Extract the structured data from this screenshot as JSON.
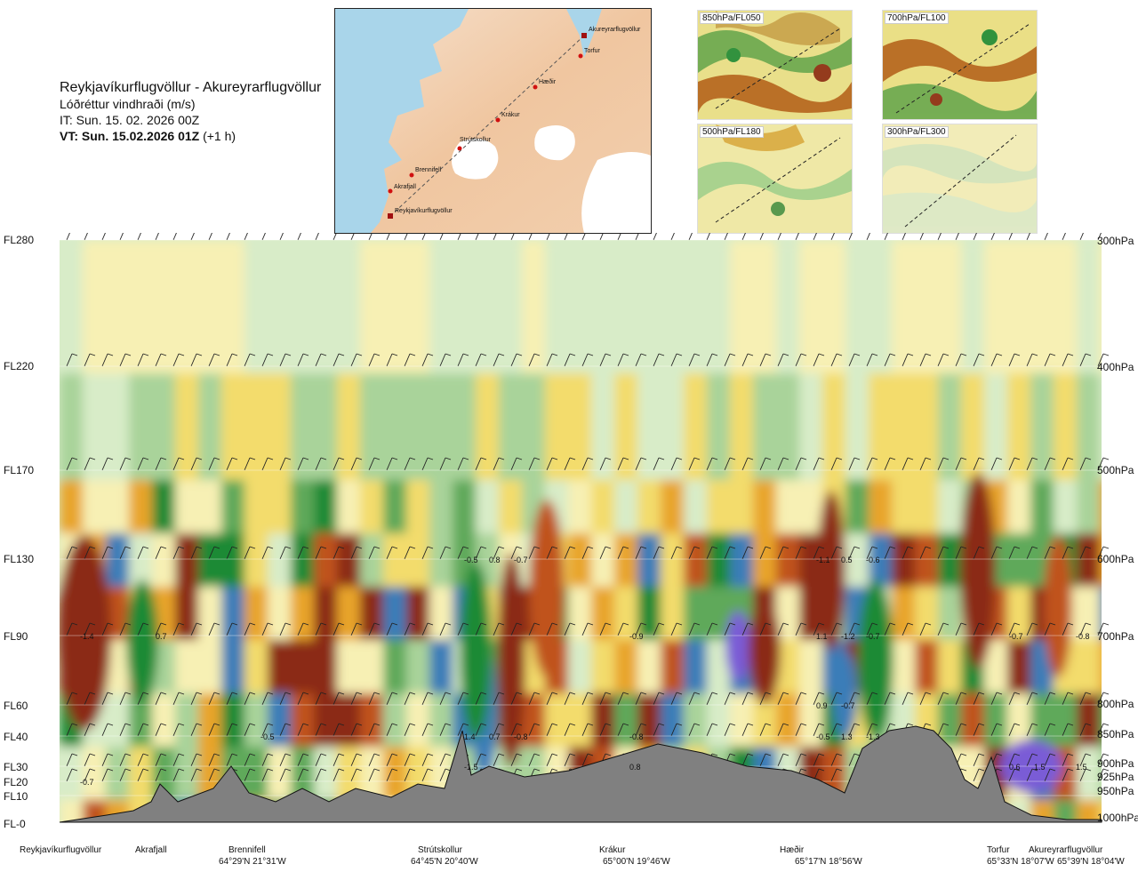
{
  "header": {
    "route": "Reykjavíkurflugvöllur - Akureyrarflugvöllur",
    "variable": "Lóðréttur vindhraði (m/s)",
    "issue_time": "IT: Sun. 15. 02. 2026 00Z",
    "valid_time": "VT: Sun. 15.02.2026 01Z",
    "valid_offset": "(+1 h)"
  },
  "route_map": {
    "points": [
      {
        "name": "Reykjavíkurflugvöllur"
      },
      {
        "name": "Akrafjall"
      },
      {
        "name": "Brennifell"
      },
      {
        "name": "Strútskollur"
      },
      {
        "name": "Krákur"
      },
      {
        "name": "Hæðir"
      },
      {
        "name": "Torfur"
      },
      {
        "name": "Akureyrarflugvöllur"
      }
    ]
  },
  "mini_maps": [
    {
      "label": "850hPa/FL050"
    },
    {
      "label": "700hPa/FL100"
    },
    {
      "label": "500hPa/FL180"
    },
    {
      "label": "300hPa/FL300"
    }
  ],
  "chart_data": {
    "type": "heatmap",
    "title": "Reykjavíkurflugvöllur - Akureyrarflugvöllur",
    "subtitle": "Lóðréttur vindhraði (m/s)",
    "y_left_ticks": [
      "FL280",
      "FL220",
      "FL170",
      "FL130",
      "FL90",
      "FL60",
      "FL40",
      "FL30",
      "FL20",
      "FL10",
      "FL-0"
    ],
    "y_right_ticks": [
      "300hPa",
      "400hPa",
      "500hPa",
      "600hPa",
      "700hPa",
      "800hPa",
      "850hPa",
      "900hPa",
      "925hPa",
      "950hPa",
      "1000hPa"
    ],
    "x_locations": [
      {
        "name": "Reykjavíkurflugvöllur",
        "coord": ""
      },
      {
        "name": "Akrafjall",
        "coord": ""
      },
      {
        "name": "Brennifell",
        "coord": "64°29'N 21°31'W"
      },
      {
        "name": "Strútskollur",
        "coord": "64°45'N 20°40'W"
      },
      {
        "name": "Krákur",
        "coord": "65°00'N 19°46'W"
      },
      {
        "name": "Hæðir",
        "coord": "65°17'N 18°56'W"
      },
      {
        "name": "Torfur",
        "coord": "65°33'N 18°07'W"
      },
      {
        "name": "Akureyrarflugvöllur",
        "coord": "65°39'N 18°04'W"
      }
    ],
    "field_labels": [
      {
        "text": "-1.4",
        "level": "FL90",
        "near": "Reykjavíkurflugvöllur"
      },
      {
        "text": "0.7",
        "level": "FL90",
        "near": "Akrafjall"
      },
      {
        "text": "-0.7",
        "level": "FL20",
        "near": "Reykjavíkurflugvöllur"
      },
      {
        "text": "-0.5",
        "level": "FL40",
        "near": "Brennifell"
      },
      {
        "text": "-0.5",
        "level": "FL130",
        "near": "Strútskollur"
      },
      {
        "text": "0.8",
        "level": "FL130",
        "near": "Strútskollur"
      },
      {
        "text": "-0.7",
        "level": "FL130",
        "near": "Strútskollur"
      },
      {
        "text": "1.4",
        "level": "FL40",
        "near": "Strútskollur"
      },
      {
        "text": "-1.5",
        "level": "FL30",
        "near": "Strútskollur"
      },
      {
        "text": "0.7",
        "level": "FL40",
        "near": "Strútskollur"
      },
      {
        "text": "-0.8",
        "level": "FL40",
        "near": "Strútskollur"
      },
      {
        "text": "-0.9",
        "level": "FL90",
        "near": "Krákur"
      },
      {
        "text": "-0.8",
        "level": "FL40",
        "near": "Krákur"
      },
      {
        "text": "0.8",
        "level": "FL30",
        "near": "Krákur"
      },
      {
        "text": "1.1",
        "level": "FL90",
        "near": "Hæðir"
      },
      {
        "text": "-1.2",
        "level": "FL90",
        "near": "Hæðir"
      },
      {
        "text": "-0.7",
        "level": "FL90",
        "near": "Hæðir"
      },
      {
        "text": "-0.5",
        "level": "FL40",
        "near": "Hæðir"
      },
      {
        "text": "0.9",
        "level": "FL60",
        "near": "Hæðir"
      },
      {
        "text": "-1.1",
        "level": "FL130",
        "near": "Hæðir"
      },
      {
        "text": "0.5",
        "level": "FL130",
        "near": "Hæðir"
      },
      {
        "text": "-0.6",
        "level": "FL130",
        "near": "Hæðir"
      },
      {
        "text": "1.3",
        "level": "FL40",
        "near": "Hæðir"
      },
      {
        "text": "-1.3",
        "level": "FL40",
        "near": "Hæðir"
      },
      {
        "text": "-0.7",
        "level": "FL60",
        "near": "Hæðir"
      },
      {
        "text": "0.6",
        "level": "FL30",
        "near": "Torfur"
      },
      {
        "text": "-0.7",
        "level": "FL90",
        "near": "Torfur"
      },
      {
        "text": "-0.8",
        "level": "FL90",
        "near": "Akureyrarflugvöllur"
      },
      {
        "text": "1.5",
        "level": "FL30",
        "near": "Torfur"
      },
      {
        "text": "1.5",
        "level": "FL30",
        "near": "Akureyrarflugvöllur"
      }
    ],
    "colors": {
      "strong_down": "#8b2a12",
      "down2": "#c0521b",
      "down3": "#e8a42a",
      "weak_down": "#f3dc6c",
      "near_zero_down": "#f7f0b4",
      "near_zero_up": "#d8ecc8",
      "weak_up": "#a9d39a",
      "up2": "#5ea95a",
      "up3": "#1f8a36",
      "strong_up": "#3b7db8",
      "very_strong_up": "#7a5cd6",
      "terrain": "#808080"
    }
  }
}
